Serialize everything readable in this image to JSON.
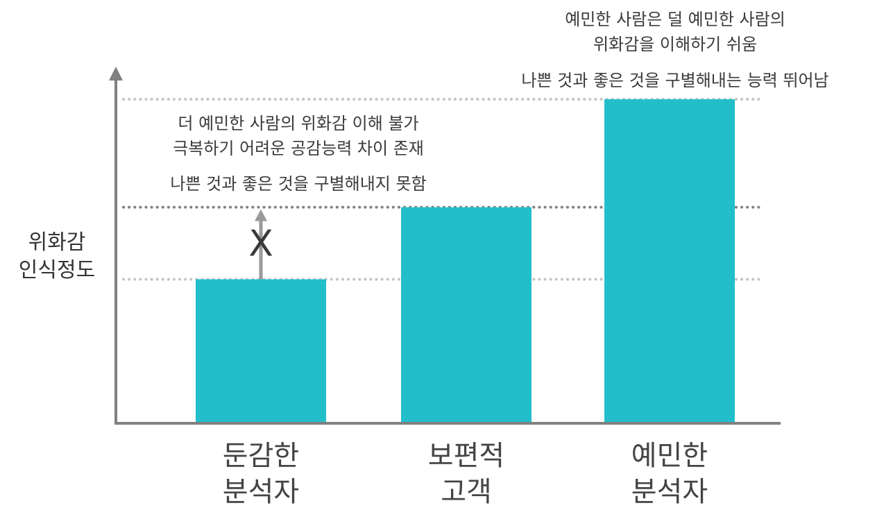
{
  "chart_data": {
    "type": "bar",
    "categories": [
      [
        "둔감한",
        "분석자"
      ],
      [
        "보편적",
        "고객"
      ],
      [
        "예민한",
        "분석자"
      ]
    ],
    "values": [
      2,
      3,
      4.5
    ],
    "ylim": [
      0,
      4.5
    ],
    "ylabel": [
      "위화감",
      "인식정도"
    ],
    "xlabel": "",
    "title": "",
    "grid": false,
    "colors": {
      "bar": "#22bfcb",
      "axis": "#808080",
      "guide_light": "#c4c4c4",
      "guide_dark": "#808080",
      "arrow": "#9a9a9a",
      "cross": "#555555",
      "text": "#3a3a3a"
    },
    "guide_lines": [
      {
        "value": 2,
        "style": "light"
      },
      {
        "value": 3,
        "style": "dark"
      },
      {
        "value": 4.5,
        "style": "light"
      }
    ],
    "annotations": [
      {
        "name": "annotation-dull-analyst",
        "lines": [
          "더 예민한 사람의 위화감 이해 불가",
          "극복하기 어려운 공감능력 차이 존재",
          "나쁜 것과 좋은 것을 구별해내지 못함"
        ]
      },
      {
        "name": "annotation-sensitive-analyst",
        "lines": [
          "예민한 사람은 덜 예민한 사람의",
          "위화감을 이해하기 쉬움",
          "나쁜 것과 좋은 것을 구별해내는 능력 뛰어남"
        ]
      }
    ],
    "blocked_arrow": {
      "from": 2,
      "to": 3,
      "category_index": 0,
      "marker": "X"
    }
  }
}
